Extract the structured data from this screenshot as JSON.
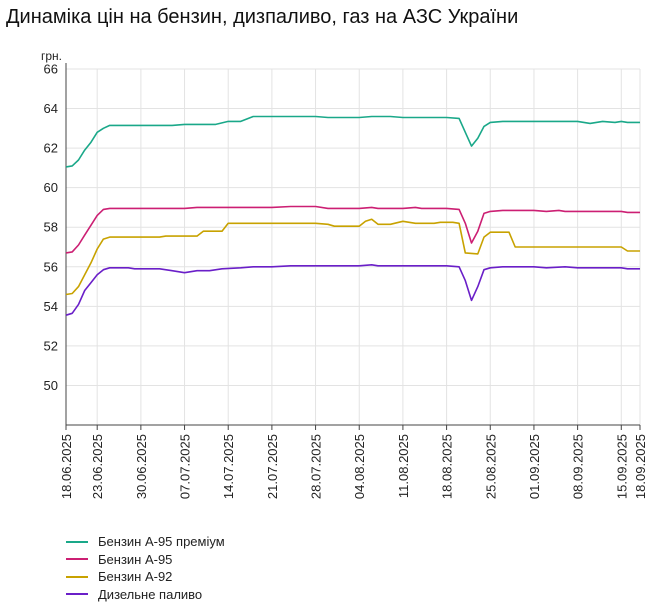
{
  "chart_data": {
    "type": "line",
    "title": "Динаміка цін на бензин, дизпаливо, газ на АЗС України",
    "ylabel": "грн.",
    "xlabel": "",
    "ylim": [
      48,
      66
    ],
    "yticks": [
      50,
      52,
      54,
      56,
      58,
      60,
      62,
      64,
      66
    ],
    "x_start": "18.06.2025",
    "x_end": "18.09.2025",
    "xticks": [
      "18.06.2025",
      "23.06.2025",
      "30.06.2025",
      "07.07.2025",
      "14.07.2025",
      "21.07.2025",
      "28.07.2025",
      "04.08.2025",
      "11.08.2025",
      "18.08.2025",
      "25.08.2025",
      "01.09.2025",
      "08.09.2025",
      "15.09.2025",
      "18.09.2025"
    ],
    "grid": true,
    "legend_position": "bottom-left",
    "series": [
      {
        "name": "Бензин А-95 преміум",
        "color": "#1aa889",
        "points": [
          [
            "18.06.2025",
            61.05
          ],
          [
            "19.06.2025",
            61.1
          ],
          [
            "20.06.2025",
            61.4
          ],
          [
            "21.06.2025",
            61.9
          ],
          [
            "22.06.2025",
            62.3
          ],
          [
            "23.06.2025",
            62.8
          ],
          [
            "24.06.2025",
            63.0
          ],
          [
            "25.06.2025",
            63.15
          ],
          [
            "30.06.2025",
            63.15
          ],
          [
            "05.07.2025",
            63.15
          ],
          [
            "07.07.2025",
            63.2
          ],
          [
            "12.07.2025",
            63.2
          ],
          [
            "14.07.2025",
            63.35
          ],
          [
            "16.07.2025",
            63.35
          ],
          [
            "18.07.2025",
            63.6
          ],
          [
            "21.07.2025",
            63.6
          ],
          [
            "28.07.2025",
            63.6
          ],
          [
            "30.07.2025",
            63.55
          ],
          [
            "04.08.2025",
            63.55
          ],
          [
            "06.08.2025",
            63.6
          ],
          [
            "09.08.2025",
            63.6
          ],
          [
            "11.08.2025",
            63.55
          ],
          [
            "18.08.2025",
            63.55
          ],
          [
            "20.08.2025",
            63.5
          ],
          [
            "21.08.2025",
            62.8
          ],
          [
            "22.08.2025",
            62.1
          ],
          [
            "23.08.2025",
            62.5
          ],
          [
            "24.08.2025",
            63.1
          ],
          [
            "25.08.2025",
            63.3
          ],
          [
            "27.08.2025",
            63.35
          ],
          [
            "01.09.2025",
            63.35
          ],
          [
            "08.09.2025",
            63.35
          ],
          [
            "10.09.2025",
            63.25
          ],
          [
            "12.09.2025",
            63.35
          ],
          [
            "14.09.2025",
            63.3
          ],
          [
            "15.09.2025",
            63.35
          ],
          [
            "16.09.2025",
            63.3
          ],
          [
            "18.09.2025",
            63.3
          ]
        ]
      },
      {
        "name": "Бензин А-95",
        "color": "#cc1f73",
        "points": [
          [
            "18.06.2025",
            56.7
          ],
          [
            "19.06.2025",
            56.75
          ],
          [
            "20.06.2025",
            57.1
          ],
          [
            "21.06.2025",
            57.6
          ],
          [
            "22.06.2025",
            58.1
          ],
          [
            "23.06.2025",
            58.6
          ],
          [
            "24.06.2025",
            58.9
          ],
          [
            "25.06.2025",
            58.95
          ],
          [
            "30.06.2025",
            58.95
          ],
          [
            "07.07.2025",
            58.95
          ],
          [
            "09.07.2025",
            59.0
          ],
          [
            "14.07.2025",
            59.0
          ],
          [
            "21.07.2025",
            59.0
          ],
          [
            "24.07.2025",
            59.05
          ],
          [
            "28.07.2025",
            59.05
          ],
          [
            "30.07.2025",
            58.95
          ],
          [
            "04.08.2025",
            58.95
          ],
          [
            "06.08.2025",
            59.0
          ],
          [
            "07.08.2025",
            58.95
          ],
          [
            "11.08.2025",
            58.95
          ],
          [
            "13.08.2025",
            59.0
          ],
          [
            "14.08.2025",
            58.95
          ],
          [
            "18.08.2025",
            58.95
          ],
          [
            "20.08.2025",
            58.9
          ],
          [
            "21.08.2025",
            58.2
          ],
          [
            "22.08.2025",
            57.2
          ],
          [
            "23.08.2025",
            57.8
          ],
          [
            "24.08.2025",
            58.7
          ],
          [
            "25.08.2025",
            58.8
          ],
          [
            "27.08.2025",
            58.85
          ],
          [
            "01.09.2025",
            58.85
          ],
          [
            "03.09.2025",
            58.8
          ],
          [
            "05.09.2025",
            58.85
          ],
          [
            "06.09.2025",
            58.8
          ],
          [
            "08.09.2025",
            58.8
          ],
          [
            "15.09.2025",
            58.8
          ],
          [
            "16.09.2025",
            58.75
          ],
          [
            "18.09.2025",
            58.75
          ]
        ]
      },
      {
        "name": "Бензин А-92",
        "color": "#c8a200",
        "points": [
          [
            "18.06.2025",
            54.6
          ],
          [
            "19.06.2025",
            54.65
          ],
          [
            "20.06.2025",
            55.0
          ],
          [
            "21.06.2025",
            55.6
          ],
          [
            "22.06.2025",
            56.2
          ],
          [
            "23.06.2025",
            56.9
          ],
          [
            "24.06.2025",
            57.4
          ],
          [
            "25.06.2025",
            57.5
          ],
          [
            "30.06.2025",
            57.5
          ],
          [
            "03.07.2025",
            57.5
          ],
          [
            "04.07.2025",
            57.55
          ],
          [
            "09.07.2025",
            57.55
          ],
          [
            "10.07.2025",
            57.8
          ],
          [
            "13.07.2025",
            57.8
          ],
          [
            "14.07.2025",
            58.2
          ],
          [
            "21.07.2025",
            58.2
          ],
          [
            "28.07.2025",
            58.2
          ],
          [
            "30.07.2025",
            58.15
          ],
          [
            "31.07.2025",
            58.05
          ],
          [
            "04.08.2025",
            58.05
          ],
          [
            "05.08.2025",
            58.3
          ],
          [
            "06.08.2025",
            58.4
          ],
          [
            "07.08.2025",
            58.15
          ],
          [
            "09.08.2025",
            58.15
          ],
          [
            "11.08.2025",
            58.3
          ],
          [
            "13.08.2025",
            58.2
          ],
          [
            "16.08.2025",
            58.2
          ],
          [
            "17.08.2025",
            58.25
          ],
          [
            "19.08.2025",
            58.25
          ],
          [
            "20.08.2025",
            58.2
          ],
          [
            "21.08.2025",
            56.7
          ],
          [
            "23.08.2025",
            56.65
          ],
          [
            "24.08.2025",
            57.5
          ],
          [
            "25.08.2025",
            57.75
          ],
          [
            "28.08.2025",
            57.75
          ],
          [
            "29.08.2025",
            57.0
          ],
          [
            "01.09.2025",
            57.0
          ],
          [
            "08.09.2025",
            57.0
          ],
          [
            "15.09.2025",
            57.0
          ],
          [
            "16.09.2025",
            56.8
          ],
          [
            "18.09.2025",
            56.8
          ]
        ]
      },
      {
        "name": "Дизельне паливо",
        "color": "#6a1fc8",
        "points": [
          [
            "18.06.2025",
            53.55
          ],
          [
            "19.06.2025",
            53.65
          ],
          [
            "20.06.2025",
            54.1
          ],
          [
            "21.06.2025",
            54.8
          ],
          [
            "22.06.2025",
            55.2
          ],
          [
            "23.06.2025",
            55.6
          ],
          [
            "24.06.2025",
            55.85
          ],
          [
            "25.06.2025",
            55.95
          ],
          [
            "28.06.2025",
            55.95
          ],
          [
            "29.06.2025",
            55.9
          ],
          [
            "03.07.2025",
            55.9
          ],
          [
            "05.07.2025",
            55.8
          ],
          [
            "07.07.2025",
            55.7
          ],
          [
            "09.07.2025",
            55.8
          ],
          [
            "11.07.2025",
            55.8
          ],
          [
            "13.07.2025",
            55.9
          ],
          [
            "16.07.2025",
            55.95
          ],
          [
            "18.07.2025",
            56.0
          ],
          [
            "21.07.2025",
            56.0
          ],
          [
            "24.07.2025",
            56.05
          ],
          [
            "28.07.2025",
            56.05
          ],
          [
            "04.08.2025",
            56.05
          ],
          [
            "06.08.2025",
            56.1
          ],
          [
            "07.08.2025",
            56.05
          ],
          [
            "11.08.2025",
            56.05
          ],
          [
            "18.08.2025",
            56.05
          ],
          [
            "20.08.2025",
            56.0
          ],
          [
            "21.08.2025",
            55.3
          ],
          [
            "22.08.2025",
            54.3
          ],
          [
            "23.08.2025",
            55.0
          ],
          [
            "24.08.2025",
            55.85
          ],
          [
            "25.08.2025",
            55.95
          ],
          [
            "27.08.2025",
            56.0
          ],
          [
            "01.09.2025",
            56.0
          ],
          [
            "03.09.2025",
            55.95
          ],
          [
            "06.09.2025",
            56.0
          ],
          [
            "08.09.2025",
            55.95
          ],
          [
            "15.09.2025",
            55.95
          ],
          [
            "16.09.2025",
            55.9
          ],
          [
            "18.09.2025",
            55.9
          ]
        ]
      }
    ]
  }
}
